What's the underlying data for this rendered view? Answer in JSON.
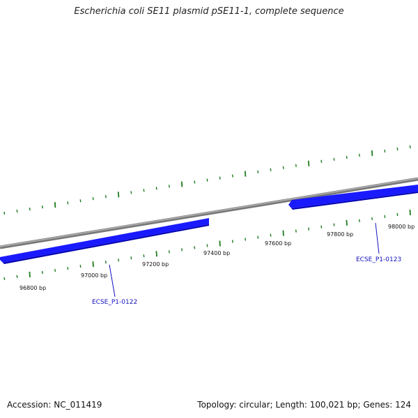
{
  "title": "Escherichia coli SE11 plasmid pSE11-1, complete sequence",
  "footer": {
    "accession": "Accession: NC_011419",
    "summary": "Topology: circular; Length: 100,021 bp; Genes: 124"
  },
  "colors": {
    "backbone": "#8c8c8c",
    "gene_fill": "#1a1aff",
    "gene_dark": "#0000b0",
    "tick": "#1e7b1e",
    "label": "#1010c0"
  },
  "ruler_labels": [
    "96800 bp",
    "97000 bp",
    "97200 bp",
    "97400 bp",
    "97600 bp",
    "97800 bp",
    "98000 bp"
  ],
  "genes": [
    {
      "name": "ECSE_P1-0122",
      "strand": "reverse"
    },
    {
      "name": "ECSE_P1-0123",
      "strand": "reverse"
    }
  ]
}
